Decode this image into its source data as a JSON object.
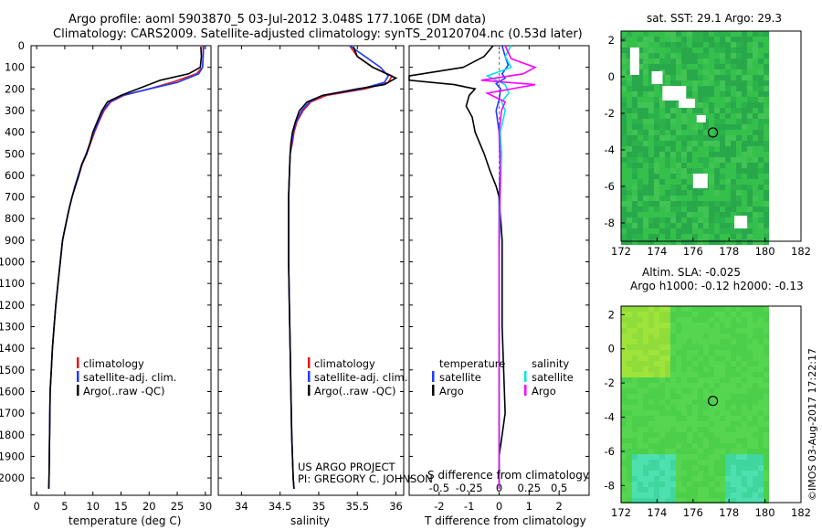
{
  "header": {
    "title_line1": "Argo profile: aoml 5903870_5 03-Jul-2012 3.048S 177.106E (DM data)",
    "title_line2": "Climatology: CARS2009. Satellite-adjusted climatology: synTS_20120704.nc (0.53d later)"
  },
  "depth_ticks": [
    "0",
    "100",
    "200",
    "300",
    "400",
    "500",
    "600",
    "700",
    "800",
    "900",
    "1000",
    "1100",
    "1200",
    "1300",
    "1400",
    "1500",
    "1600",
    "1700",
    "1800",
    "1900",
    "2000"
  ],
  "chart_data": [
    {
      "type": "line",
      "name": "temperature-profile",
      "xlabel": "temperature (deg C)",
      "ylabel": "depth",
      "xlim": [
        -1,
        31
      ],
      "ylim": [
        2080,
        0
      ],
      "xticks": [
        "0",
        "5",
        "10",
        "15",
        "20",
        "25",
        "30"
      ],
      "legend": [
        "climatology",
        "satellite-adj. clim.",
        "Argo(..raw -QC)"
      ],
      "series": [
        {
          "name": "climatology",
          "color": "#e41a1c",
          "x": [
            29.6,
            29.6,
            29.5,
            28.4,
            24,
            20,
            15.5,
            13.2,
            12,
            11.1,
            10.3,
            9.6,
            8.9,
            8.1,
            7.5,
            6.8,
            6.3,
            5.8,
            5.4,
            5,
            4.6,
            4.2,
            3.8,
            3.4,
            3.1,
            2.8,
            2.6,
            2.4,
            2.3,
            2.2,
            2.15
          ],
          "y": [
            0,
            50,
            100,
            130,
            170,
            200,
            230,
            260,
            300,
            350,
            400,
            450,
            500,
            550,
            600,
            650,
            700,
            750,
            800,
            850,
            900,
            1000,
            1100,
            1200,
            1300,
            1400,
            1500,
            1600,
            1800,
            2000,
            2050
          ]
        },
        {
          "name": "satellite-adj. clim.",
          "color": "#1f3bff",
          "x": [
            29.7,
            29.6,
            29.5,
            28.8,
            25,
            20,
            15.3,
            13,
            11.8,
            11,
            10.2,
            9.5,
            8.8,
            8,
            7.4,
            6.8,
            6.3,
            5.8,
            5.4,
            5,
            4.6,
            4.2,
            3.8,
            3.4,
            3.1,
            2.8,
            2.6,
            2.4,
            2.3,
            2.2,
            2.15
          ],
          "y": [
            0,
            50,
            100,
            130,
            170,
            200,
            230,
            260,
            300,
            350,
            400,
            450,
            500,
            550,
            600,
            650,
            700,
            750,
            800,
            850,
            900,
            1000,
            1100,
            1200,
            1300,
            1400,
            1500,
            1600,
            1800,
            2000,
            2050
          ]
        },
        {
          "name": "Argo",
          "color": "#000000",
          "x": [
            29.2,
            29.3,
            29.1,
            27,
            22,
            18,
            15,
            12.6,
            11.6,
            10.8,
            10,
            9.5,
            8.9,
            8,
            7.5,
            6.9,
            6.3,
            5.8,
            5.4,
            5,
            4.6,
            4.2,
            3.8,
            3.4,
            3.1,
            2.8,
            2.6,
            2.4,
            2.3,
            2.2,
            2.15
          ],
          "y": [
            5,
            50,
            100,
            130,
            160,
            200,
            230,
            260,
            300,
            350,
            400,
            450,
            500,
            550,
            600,
            650,
            700,
            750,
            800,
            850,
            900,
            1000,
            1100,
            1200,
            1300,
            1400,
            1500,
            1600,
            1800,
            2000,
            2050
          ]
        }
      ]
    },
    {
      "type": "line",
      "name": "salinity-profile",
      "xlabel": "salinity",
      "ylabel": "depth",
      "xlim": [
        33.7,
        36.1
      ],
      "ylim": [
        2080,
        0
      ],
      "xticks": [
        "34",
        "34.5",
        "35",
        "35.5",
        "36"
      ],
      "legend": [
        "climatology",
        "satellite-adj. clim.",
        "Argo(..raw -QC)"
      ],
      "annotation": [
        "US ARGO PROJECT",
        "PI: GREGORY C. JOHNSON"
      ],
      "series": [
        {
          "name": "climatology",
          "color": "#e41a1c",
          "x": [
            35.4,
            35.5,
            35.7,
            35.95,
            35.9,
            35.6,
            35.1,
            34.9,
            34.8,
            34.72,
            34.68,
            34.66,
            34.63,
            34.62,
            34.61,
            34.61,
            34.61,
            34.62,
            34.63,
            34.64,
            34.65,
            34.66,
            34.67,
            34.68
          ],
          "y": [
            0,
            50,
            100,
            140,
            170,
            200,
            230,
            260,
            300,
            350,
            400,
            450,
            500,
            600,
            700,
            800,
            1000,
            1200,
            1400,
            1600,
            1800,
            1900,
            2000,
            2050
          ]
        },
        {
          "name": "satellite-adj. clim.",
          "color": "#1f3bff",
          "x": [
            35.4,
            35.6,
            35.8,
            35.9,
            35.85,
            35.55,
            35.05,
            34.88,
            34.78,
            34.71,
            34.67,
            34.65,
            34.63,
            34.62,
            34.61,
            34.61,
            34.61,
            34.62,
            34.63,
            34.64,
            34.65,
            34.66,
            34.67,
            34.68
          ],
          "y": [
            0,
            50,
            100,
            140,
            170,
            200,
            230,
            260,
            300,
            350,
            400,
            450,
            500,
            600,
            700,
            800,
            1000,
            1200,
            1400,
            1600,
            1800,
            1900,
            2000,
            2050
          ]
        },
        {
          "name": "Argo",
          "color": "#000000",
          "x": [
            35.45,
            35.5,
            35.7,
            36.0,
            35.85,
            35.5,
            35.05,
            34.85,
            34.75,
            34.7,
            34.66,
            34.64,
            34.63,
            34.62,
            34.61,
            34.61,
            34.61,
            34.62,
            34.63,
            34.64,
            34.65,
            34.66,
            34.67,
            34.68
          ],
          "y": [
            5,
            50,
            100,
            150,
            180,
            200,
            230,
            260,
            300,
            350,
            400,
            450,
            500,
            600,
            700,
            800,
            1000,
            1200,
            1400,
            1600,
            1800,
            1900,
            2000,
            2050
          ]
        }
      ]
    },
    {
      "type": "line",
      "name": "difference-profile",
      "xlabel": "T difference from climatology",
      "xlabel_top": "S difference from climatology",
      "xlim_T": [
        -3,
        3
      ],
      "xlim_S": [
        -0.75,
        0.75
      ],
      "ylim": [
        2080,
        0
      ],
      "xticks_T": [
        "-2",
        "-1",
        "0",
        "1",
        "2"
      ],
      "xticks_S": [
        "-0.5",
        "-0.25",
        "0",
        "0.25",
        "0.5"
      ],
      "legend_headers": [
        "temperature",
        "salinity"
      ],
      "legend": [
        "satellite",
        "Argo",
        "satellite",
        "Argo"
      ],
      "series": [
        {
          "name": "T satellite",
          "axis": "T",
          "color": "#1f3bff",
          "x": [
            0.1,
            0.2,
            0.3,
            0.1,
            0.2,
            -0.1,
            0.05,
            0,
            -0.1,
            0,
            0.05,
            0,
            0,
            0,
            0,
            0,
            0
          ],
          "y": [
            0,
            50,
            90,
            130,
            150,
            175,
            200,
            250,
            300,
            400,
            500,
            700,
            900,
            1200,
            1500,
            1800,
            2050
          ]
        },
        {
          "name": "T Argo",
          "axis": "T",
          "color": "#000000",
          "x": [
            -0.2,
            -0.5,
            -1.2,
            -3,
            -3,
            -1.5,
            -0.8,
            -1.0,
            -1.1,
            -0.9,
            -0.8,
            -0.5,
            -0.3,
            -0.1,
            0,
            0.1,
            0.1,
            0.2,
            0,
            0
          ],
          "y": [
            0,
            50,
            100,
            140,
            160,
            180,
            200,
            230,
            280,
            330,
            400,
            500,
            580,
            650,
            700,
            900,
            1300,
            1700,
            1900,
            2050
          ]
        },
        {
          "name": "S satellite",
          "axis": "S",
          "color": "#00e5ee",
          "x": [
            0.1,
            0.05,
            0.1,
            -0.1,
            0.05,
            0.08,
            0.02,
            0.05,
            0.01,
            0.02,
            0.01,
            0,
            0,
            0,
            0
          ],
          "y": [
            0,
            50,
            100,
            140,
            180,
            220,
            260,
            300,
            400,
            500,
            700,
            1000,
            1400,
            1800,
            2050
          ]
        },
        {
          "name": "S Argo",
          "axis": "S",
          "color": "#ff00ff",
          "x": [
            0.05,
            0.1,
            0.3,
            0.2,
            -0.15,
            0.3,
            -0.1,
            0.05,
            0.02,
            0,
            0.01,
            0,
            0,
            0,
            0
          ],
          "y": [
            0,
            60,
            100,
            130,
            160,
            180,
            220,
            260,
            300,
            400,
            600,
            900,
            1300,
            1700,
            2050
          ]
        }
      ]
    },
    {
      "type": "heatmap",
      "name": "sst-map",
      "title": "sat. SST: 29.1  Argo: 29.3",
      "xlim": [
        172,
        182
      ],
      "ylim": [
        -9,
        2.5
      ],
      "xticks": [
        "172",
        "174",
        "176",
        "178",
        "180",
        "182"
      ],
      "yticks": [
        "2",
        "0",
        "-2",
        "-4",
        "-6",
        "-8"
      ],
      "marker": {
        "lon": 177.106,
        "lat": -3.048
      }
    },
    {
      "type": "heatmap",
      "name": "sla-map",
      "title_line1": "Altim. SLA: -0.025",
      "title_line2": "Argo h1000: -0.12 h2000: -0.13",
      "xlim": [
        172,
        182
      ],
      "ylim": [
        -9,
        2.5
      ],
      "xticks": [
        "172",
        "174",
        "176",
        "178",
        "180",
        "182"
      ],
      "yticks": [
        "2",
        "0",
        "-2",
        "-4",
        "-6",
        "-8"
      ],
      "marker": {
        "lon": 177.106,
        "lat": -3.048
      }
    }
  ],
  "footer": {
    "stamp": "©IMOS 03-Aug-2017 17:22:17"
  }
}
